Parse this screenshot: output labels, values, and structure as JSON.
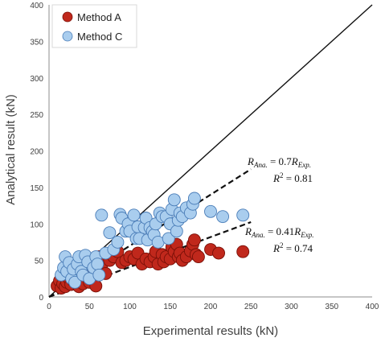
{
  "chart_data": {
    "type": "scatter",
    "xlabel": "Experimental results (kN)",
    "ylabel": "Analytical result (kN)",
    "xlim": [
      0,
      400
    ],
    "ylim": [
      0,
      400
    ],
    "xticks": [
      0,
      50,
      100,
      150,
      200,
      250,
      300,
      350,
      400
    ],
    "yticks": [
      0,
      50,
      100,
      150,
      200,
      250,
      300,
      350,
      400
    ],
    "legend": {
      "placement": "top-left",
      "entries": [
        "Method A",
        "Method C"
      ]
    },
    "colors": {
      "method_a": "#c0281c",
      "method_c": "#a9cdee",
      "method_c_edge": "#4a7db8",
      "method_a_edge": "#7a1008"
    },
    "series": [
      {
        "name": "Method A",
        "points": [
          [
            10,
            15
          ],
          [
            13,
            22
          ],
          [
            15,
            12
          ],
          [
            17,
            18
          ],
          [
            19,
            28
          ],
          [
            20,
            14
          ],
          [
            22,
            20
          ],
          [
            25,
            25
          ],
          [
            27,
            17
          ],
          [
            30,
            22
          ],
          [
            32,
            30
          ],
          [
            35,
            20
          ],
          [
            37,
            14
          ],
          [
            40,
            25
          ],
          [
            42,
            18
          ],
          [
            45,
            30
          ],
          [
            50,
            20
          ],
          [
            55,
            27
          ],
          [
            58,
            15
          ],
          [
            60,
            42
          ],
          [
            62,
            55
          ],
          [
            65,
            40
          ],
          [
            70,
            32
          ],
          [
            75,
            50
          ],
          [
            80,
            55
          ],
          [
            85,
            62
          ],
          [
            90,
            47
          ],
          [
            95,
            50
          ],
          [
            100,
            55
          ],
          [
            105,
            52
          ],
          [
            110,
            60
          ],
          [
            115,
            45
          ],
          [
            120,
            52
          ],
          [
            125,
            48
          ],
          [
            130,
            55
          ],
          [
            132,
            62
          ],
          [
            135,
            45
          ],
          [
            140,
            58
          ],
          [
            142,
            48
          ],
          [
            145,
            55
          ],
          [
            150,
            52
          ],
          [
            152,
            68
          ],
          [
            155,
            62
          ],
          [
            158,
            72
          ],
          [
            160,
            55
          ],
          [
            162,
            60
          ],
          [
            165,
            50
          ],
          [
            170,
            55
          ],
          [
            175,
            63
          ],
          [
            178,
            72
          ],
          [
            180,
            78
          ],
          [
            182,
            58
          ],
          [
            185,
            55
          ],
          [
            200,
            65
          ],
          [
            210,
            60
          ],
          [
            240,
            62
          ]
        ]
      },
      {
        "name": "Method C",
        "points": [
          [
            15,
            30
          ],
          [
            18,
            40
          ],
          [
            20,
            55
          ],
          [
            22,
            35
          ],
          [
            25,
            47
          ],
          [
            28,
            25
          ],
          [
            30,
            38
          ],
          [
            32,
            20
          ],
          [
            35,
            45
          ],
          [
            37,
            55
          ],
          [
            40,
            35
          ],
          [
            42,
            30
          ],
          [
            45,
            57
          ],
          [
            48,
            48
          ],
          [
            50,
            25
          ],
          [
            55,
            40
          ],
          [
            58,
            55
          ],
          [
            60,
            45
          ],
          [
            62,
            30
          ],
          [
            65,
            112
          ],
          [
            70,
            60
          ],
          [
            75,
            88
          ],
          [
            80,
            65
          ],
          [
            85,
            75
          ],
          [
            88,
            113
          ],
          [
            90,
            108
          ],
          [
            95,
            90
          ],
          [
            98,
            100
          ],
          [
            100,
            90
          ],
          [
            105,
            112
          ],
          [
            108,
            80
          ],
          [
            110,
            96
          ],
          [
            112,
            80
          ],
          [
            118,
            95
          ],
          [
            120,
            108
          ],
          [
            122,
            78
          ],
          [
            125,
            95
          ],
          [
            128,
            90
          ],
          [
            130,
            85
          ],
          [
            132,
            100
          ],
          [
            135,
            75
          ],
          [
            137,
            115
          ],
          [
            140,
            110
          ],
          [
            145,
            110
          ],
          [
            148,
            80
          ],
          [
            150,
            100
          ],
          [
            152,
            120
          ],
          [
            155,
            133
          ],
          [
            158,
            90
          ],
          [
            160,
            105
          ],
          [
            162,
            115
          ],
          [
            165,
            110
          ],
          [
            170,
            122
          ],
          [
            175,
            115
          ],
          [
            178,
            127
          ],
          [
            180,
            135
          ],
          [
            200,
            117
          ],
          [
            215,
            110
          ],
          [
            240,
            112
          ]
        ]
      }
    ],
    "lines": [
      {
        "label": "1:1",
        "slope": 1,
        "x_range": [
          0,
          400
        ],
        "style": "solid"
      },
      {
        "label": "fit A",
        "slope": 0.41,
        "x_range": [
          0,
          250
        ],
        "style": "dashed"
      },
      {
        "label": "fit C",
        "slope": 0.7,
        "x_range": [
          0,
          250
        ],
        "style": "dashed"
      }
    ],
    "annotations": [
      {
        "line1": "R_Ana. = 0.7R_Exp.",
        "line2": "R^2 = 0.81"
      },
      {
        "line1": "R_Ana. = 0.41R_Exp.",
        "line2": "R^2 = 0.74"
      }
    ],
    "grid": false
  }
}
